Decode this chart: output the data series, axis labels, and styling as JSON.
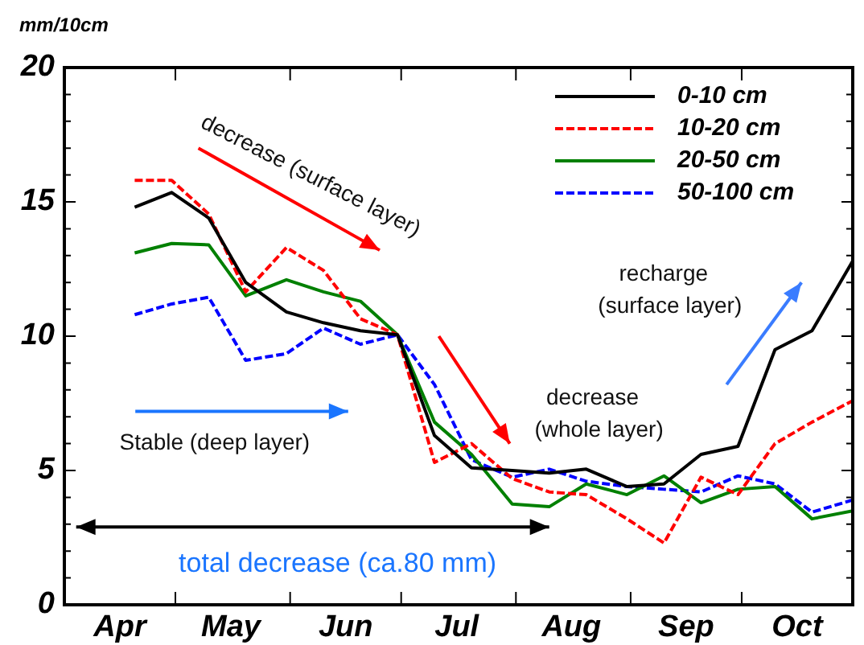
{
  "chart_data": {
    "type": "line",
    "ylabel": "mm/10cm",
    "x": [
      "--04-20",
      "--04-30",
      "--05-10",
      "--05-20",
      "--05-31",
      "--06-10",
      "--06-20",
      "--06-30",
      "--07-10",
      "--07-20",
      "--07-31",
      "--08-10",
      "--08-20",
      "--08-31",
      "--09-10",
      "--09-20",
      "--09-30",
      "--10-10",
      "--10-20",
      "--10-31"
    ],
    "series": [
      {
        "name": "0-10 cm",
        "color": "#000000",
        "line_style": "solid",
        "values": [
          14.8,
          15.35,
          14.4,
          12.0,
          10.9,
          10.5,
          10.2,
          10.05,
          6.3,
          5.1,
          5.0,
          4.9,
          5.05,
          4.4,
          4.5,
          5.6,
          5.9,
          9.5,
          10.2,
          12.8
        ]
      },
      {
        "name": "10-20 cm",
        "color": "#ff0000",
        "line_style": "dashed",
        "values": [
          15.8,
          15.8,
          14.55,
          11.65,
          13.3,
          12.45,
          10.65,
          10.05,
          5.3,
          6.0,
          4.7,
          4.2,
          4.1,
          3.2,
          2.3,
          4.75,
          4.1,
          6.0,
          6.8,
          7.6
        ]
      },
      {
        "name": "20-50 cm",
        "color": "#008000",
        "line_style": "solid",
        "values": [
          13.1,
          13.45,
          13.4,
          11.5,
          12.1,
          11.65,
          11.3,
          10.05,
          6.8,
          5.6,
          3.75,
          3.65,
          4.5,
          4.1,
          4.8,
          3.8,
          4.3,
          4.4,
          3.2,
          3.5
        ]
      },
      {
        "name": "50-100 cm",
        "color": "#0000ff",
        "line_style": "dashed",
        "values": [
          10.8,
          11.2,
          11.45,
          9.1,
          9.35,
          10.3,
          9.7,
          10.05,
          8.2,
          5.4,
          4.75,
          5.05,
          4.6,
          4.4,
          4.3,
          4.2,
          4.8,
          4.5,
          3.45,
          3.9
        ]
      }
    ],
    "xlim": [
      "--04-01",
      "--10-31"
    ],
    "xticks": [
      {
        "value": "--04-16",
        "label": "Apr"
      },
      {
        "value": "--05-01",
        "label": null
      },
      {
        "value": "--05-16",
        "label": "May"
      },
      {
        "value": "--06-01",
        "label": null
      },
      {
        "value": "--06-16",
        "label": "Jun"
      },
      {
        "value": "--07-01",
        "label": null
      },
      {
        "value": "--07-16",
        "label": "Jul"
      },
      {
        "value": "--08-01",
        "label": null
      },
      {
        "value": "--08-16",
        "label": "Aug"
      },
      {
        "value": "--09-01",
        "label": null
      },
      {
        "value": "--09-16",
        "label": "Sep"
      },
      {
        "value": "--10-01",
        "label": null
      },
      {
        "value": "--10-16",
        "label": "Oct"
      }
    ],
    "ylim": [
      0,
      20
    ],
    "yticks": [
      0,
      {
        "value": 1,
        "label": null
      },
      {
        "value": 2,
        "label": null
      },
      {
        "value": 3,
        "label": null
      },
      {
        "value": 4,
        "label": null
      },
      5,
      {
        "value": 6,
        "label": null
      },
      {
        "value": 7,
        "label": null
      },
      {
        "value": 8,
        "label": null
      },
      {
        "value": 9,
        "label": null
      },
      10,
      {
        "value": 11,
        "label": null
      },
      {
        "value": 12,
        "label": null
      },
      {
        "value": 13,
        "label": null
      },
      {
        "value": 14,
        "label": null
      },
      15,
      {
        "value": 16,
        "label": null
      },
      {
        "value": 17,
        "label": null
      },
      {
        "value": 18,
        "label": null
      },
      {
        "value": 19,
        "label": null
      },
      20
    ],
    "grid": false,
    "legend": "top right",
    "marker": "none",
    "annotations": [
      "decrease (surface layer)",
      "Stable (deep layer)",
      "total decrease (ca.80 mm)",
      "decrease\n(whole layer)",
      "recharge\n(surface layer)"
    ]
  }
}
